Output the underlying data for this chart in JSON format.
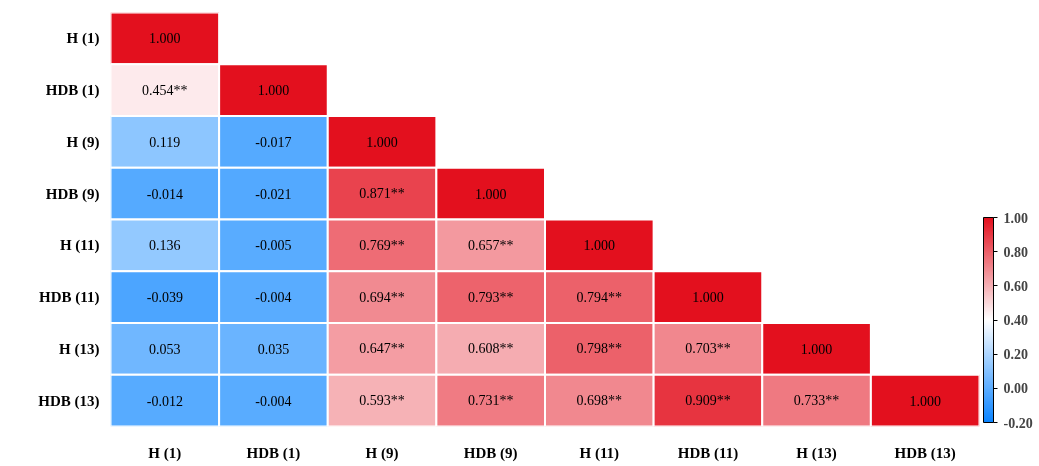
{
  "chart_data": {
    "type": "heatmap",
    "categories": [
      "H (1)",
      "HDB (1)",
      "H (9)",
      "HDB (9)",
      "H (11)",
      "HDB (11)",
      "H (13)",
      "HDB (13)"
    ],
    "y_categories": [
      "H (1)",
      "HDB (1)",
      "H (9)",
      "HDB (9)",
      "H (11)",
      "HDB (11)",
      "H (13)",
      "HDB (13)"
    ],
    "cells": [
      [
        1.0,
        null,
        null,
        null,
        null,
        null,
        null,
        null
      ],
      [
        0.454,
        1.0,
        null,
        null,
        null,
        null,
        null,
        null
      ],
      [
        0.119,
        -0.017,
        1.0,
        null,
        null,
        null,
        null,
        null
      ],
      [
        -0.014,
        -0.021,
        0.871,
        1.0,
        null,
        null,
        null,
        null
      ],
      [
        0.136,
        -0.005,
        0.769,
        0.657,
        1.0,
        null,
        null,
        null
      ],
      [
        -0.039,
        -0.004,
        0.694,
        0.793,
        0.794,
        1.0,
        null,
        null
      ],
      [
        0.053,
        0.035,
        0.647,
        0.608,
        0.798,
        0.703,
        1.0,
        null
      ],
      [
        -0.012,
        -0.004,
        0.593,
        0.731,
        0.698,
        0.909,
        0.733,
        1.0
      ]
    ],
    "cell_labels": [
      [
        "1.000",
        null,
        null,
        null,
        null,
        null,
        null,
        null
      ],
      [
        "0.454**",
        "1.000",
        null,
        null,
        null,
        null,
        null,
        null
      ],
      [
        "0.119",
        "-0.017",
        "1.000",
        null,
        null,
        null,
        null,
        null
      ],
      [
        "-0.014",
        "-0.021",
        "0.871**",
        "1.000",
        null,
        null,
        null,
        null
      ],
      [
        "0.136",
        "-0.005",
        "0.769**",
        "0.657**",
        "1.000",
        null,
        null,
        null
      ],
      [
        "-0.039",
        "-0.004",
        "0.694**",
        "0.793**",
        "0.794**",
        "1.000",
        null,
        null
      ],
      [
        "0.053",
        "0.035",
        "0.647**",
        "0.608**",
        "0.798**",
        "0.703**",
        "1.000",
        null
      ],
      [
        "-0.012",
        "-0.004",
        "0.593**",
        "0.731**",
        "0.698**",
        "0.909**",
        "0.733**",
        "1.000"
      ]
    ],
    "clim": [
      -0.2,
      1.0
    ],
    "cticks": [
      {
        "value": -0.2,
        "label": "-0.20"
      },
      {
        "value": 0,
        "label": "0.00"
      },
      {
        "value": 0.2,
        "label": "0.20"
      },
      {
        "value": 0.4,
        "label": "0.40"
      },
      {
        "value": 0.6,
        "label": "0.60"
      },
      {
        "value": 0.8,
        "label": "0.80"
      },
      {
        "value": 1.0,
        "label": "1.00"
      }
    ]
  }
}
